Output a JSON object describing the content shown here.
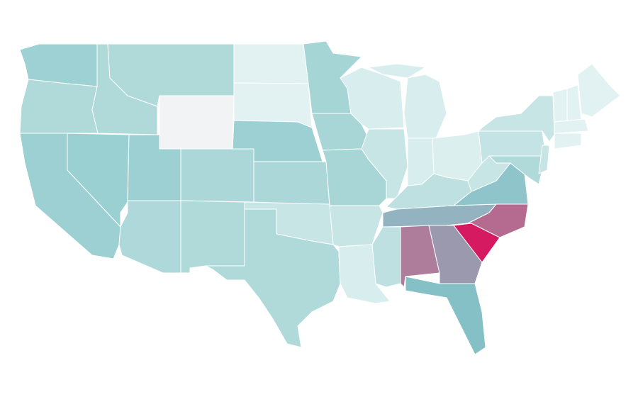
{
  "map": {
    "regions": [
      {
        "color": "#9dd1d3"
      },
      {
        "color": "#b0d9da"
      },
      {
        "color": "#9dd0d3"
      },
      {
        "color": "#9bd0d2"
      },
      {
        "color": "#b0d9da"
      },
      {
        "color": "#b0dada"
      },
      {
        "color": "#f2f3f4"
      },
      {
        "color": "#9cd0d2"
      },
      {
        "color": "#acd7d8"
      },
      {
        "color": "#aed8d9"
      },
      {
        "color": "#b0dada"
      },
      {
        "color": "#e2f2f2"
      },
      {
        "color": "#e2f2f2"
      },
      {
        "color": "#9cd0d2"
      },
      {
        "color": "#acd7d8"
      },
      {
        "color": "#c7e5e5"
      },
      {
        "color": "#b0dada"
      },
      {
        "color": "#a6d5d6"
      },
      {
        "color": "#a8d6d7"
      },
      {
        "color": "#a8d6d7"
      },
      {
        "color": "#c7e5e5"
      },
      {
        "color": "#d8eded"
      },
      {
        "color": "#d8eded"
      },
      {
        "color": "#c7e5e5"
      },
      {
        "color": "#d8eded"
      },
      {
        "color": "#d8eded"
      },
      {
        "color": "#d8eded"
      },
      {
        "color": "#dcefef"
      },
      {
        "color": "#bfe0e1"
      },
      {
        "color": "#93b3c0"
      },
      {
        "color": "#bfe0e1"
      },
      {
        "color": "#ad7d9b"
      },
      {
        "color": "#9a99ae"
      },
      {
        "color": "#85c0c6"
      },
      {
        "color": "#d61a62"
      },
      {
        "color": "#b56a8f"
      },
      {
        "color": "#8fc5ca"
      },
      {
        "color": "#c7e5e5"
      },
      {
        "color": "#c4e3e4"
      },
      {
        "color": "#c7e5e5"
      },
      {
        "color": "#b0dada"
      },
      {
        "color": "#c7e5e5"
      },
      {
        "color": "#e2f2f2"
      },
      {
        "color": "#e2f2f2"
      },
      {
        "color": "#e2f2f2"
      },
      {
        "color": "#e2f2f2"
      },
      {
        "color": "#e2f2f2"
      }
    ]
  }
}
